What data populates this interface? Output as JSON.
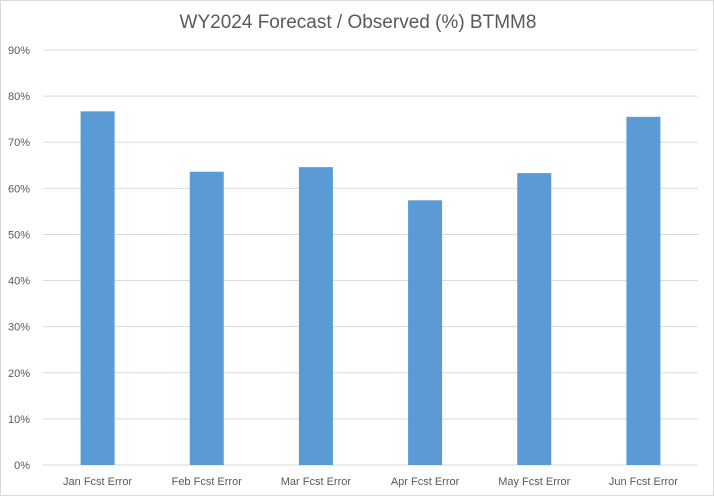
{
  "chart_data": {
    "type": "bar",
    "title": "WY2024 Forecast / Observed (%) BTMM8",
    "xlabel": "",
    "ylabel": "",
    "categories": [
      "Jan Fcst Error",
      "Feb Fcst Error",
      "Mar Fcst Error",
      "Apr Fcst Error",
      "May Fcst Error",
      "Jun Fcst Error"
    ],
    "values": [
      76.7,
      63.6,
      64.6,
      57.4,
      63.3,
      75.5
    ],
    "ylim": [
      0,
      90
    ],
    "yticks": [
      0,
      10,
      20,
      30,
      40,
      50,
      60,
      70,
      80,
      90
    ],
    "ytick_labels": [
      "0%",
      "10%",
      "20%",
      "30%",
      "40%",
      "50%",
      "60%",
      "70%",
      "80%",
      "90%"
    ],
    "grid": true,
    "legend": "none",
    "bar_color": "#5b9bd5",
    "grid_color": "#d9d9d9"
  }
}
